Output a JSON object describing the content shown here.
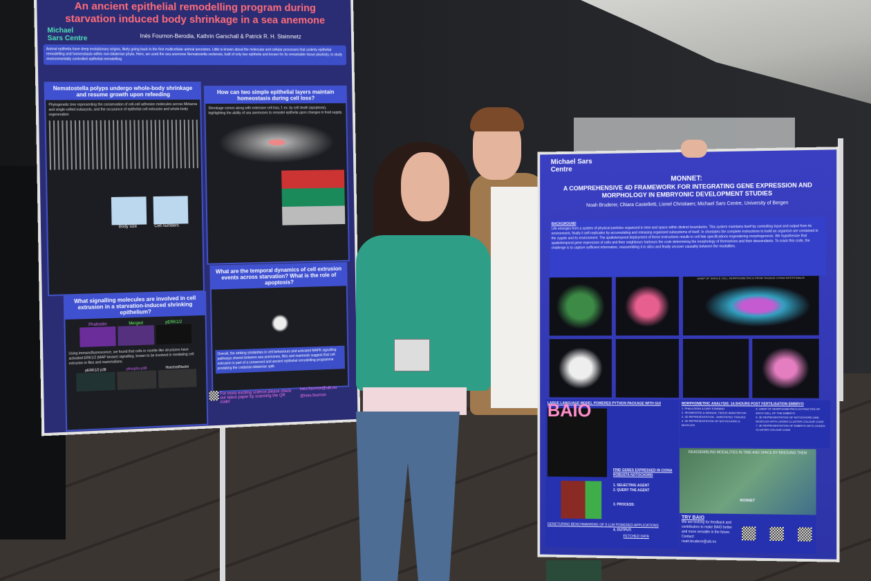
{
  "left_poster": {
    "title": "An ancient epithelial remodelling program during starvation induced body shrinkage in a sea anemone",
    "logo": "Michael Sars Centre",
    "authors": "Inés Fournon-Berodia, Kathrin Garschall & Patrick R. H. Steinmetz",
    "abstract": "Animal epithelia have deep evolutionary origins, likely going back to the first multicellular animal ancestors. Little is known about the molecular and cellular processes that underly epithelial remodelling and homeostasis within non-bilaterian phyla. Here, we used the sea anemone Nematostella vectensis, built of only two epithelia and known for its remarkable tissue plasticity, to study environmentally controlled epithelial remodelling",
    "sections": [
      {
        "heading": "Nematostella polyps undergo whole-body shrinkage and resume growth upon refeeding",
        "text": "Phylogenetic tree representing the conservation of cell-cell adhesion molecules across Metazoa and single-celled eukaryots, and the occurance of epithelial cell extrusion and whole-body regeneration"
      },
      {
        "heading": "How can two simple epithelial layers maintain homeostasis during cell loss?",
        "text": "Shrinkage comes along with extensive cell loss, f. ex. by cell death (apoptosis), highlighting the ability of sea anemones to remodel epithelia upon changes in food supply."
      },
      {
        "heading": "What signalling molecules are involved in cell extrusion in a starvation-induced shrinking epithelium?",
        "text": "Using immunofluorescence, we found that cells in rosette-like structures have activated ERK1/2 (MAP kinase) signalling, known to be involved in mediating cell extrusion in flies and mammalians."
      },
      {
        "heading": "What are the temporal dynamics of cell extrusion events across starvation? What is the role of apoptosis?",
        "text": "Overall, the striking similarities in cell behaviours and activated MAPK signalling pathways shared between sea anemones, flies and mammals suggest that cell extrusion is part of a conserved and ancient epithelial remodelling programme predating the cnidarian-bilaterian split."
      }
    ],
    "labels": [
      "Phalloidin",
      "Merged",
      "pERK1/2",
      "pERK1/2 p38",
      "phospho-p38",
      "Hoechst/Nuclei",
      "Body size",
      "Cell numbers"
    ],
    "footer": "For more exciting science please check our latest paper by scanning the QR code!",
    "contact_email": "ines.fournon@uib.no",
    "contact_x": "@ines.fournon"
  },
  "right_poster": {
    "logo": "Michael Sars Centre",
    "title": "MONNET:",
    "subtitle": "A COMPREHENSIVE 4D FRAMEWORK FOR INTEGRATING GENE EXPRESSION AND MORPHOLOGY IN EMBRYONIC DEVELOPMENT STUDIES",
    "authors": "Noah Bruderer, Chiara Castelletti, Lionel Christiaen; Michael Sars Centre, University of Bergen",
    "background_heading": "BACKGROUND",
    "background": "Life emerges from a system of physical particles organized in time and space within distinct boundaries. This system maintains itself by controlling input and output from its environment, finally it self-replicates by accumulating and releasing organised subsystems of itself. In chordates the complete instructions to build an organism are contained in the zygote and its environment. The spatiotemporal deployment of these instructions results in cell fate specifications engendering morphogenesis. We hypothesise that spatiotemporal gene expression of cells and their neighbours harbours the code determining the morphology of themselves and their descendants. To crack this code, the challenge is to capture sufficient information, reassembling it in silico and finally uncover causality between the modalities.",
    "llm_heading": "LARGE LANGUAGE MODEL POWERED PYTHON PACKAGE WITH GUI",
    "baio": "BAIO",
    "find_genes": "FIND GENES EXPRESSED IN CIONA ROBUSTA NOTOCHORD",
    "steps": [
      "1. SELECTING AGENT",
      "2. QUERY THE AGENT",
      "3. PROCESS:",
      "4. OUTPUT:"
    ],
    "benchmark": "GENETURING BENCHMARKING OF 9 LLM POWERED APPLICATIONS",
    "fetched": "FETCHED DATA",
    "morpho_heading": "MORPHOMETRIC ANALYSIS: 14.5HOURS POST FERTILISATION EMBRYO",
    "morpho_items": [
      "1. PHALLOIDIN & DAPI STAINING",
      "2. SEGMENTED & MANUAL TISSUE ANNOTATION",
      "3. 3D REPRESENTATION - ANNOTATED TISSUES",
      "4. 3D REPRESENTATION OF NOTOCHORD & MUSCLES",
      "5. UMAP OF MORPHOMETRICS EXTRACTED OF EACH CELL OF THE EMBRYO",
      "6. 3D REPRESENTATION OF NOTOCHORD AND MUSCLES WITH LEIDEN CLUSTER COLOUR CODE",
      "7. 3D REPRESENTATION OF EMBRYO WITH LEIDEN CLUSTER COLOUR CODE"
    ],
    "umap_title": "UMAP OF SINGLE CELL MORPHOMETRICS FROM TAILBUD CIONA INTESTINALIS",
    "reassemble": "REASSEMBLING MODALITIES IN TIME AND SPACE BY BRIDGING THEM",
    "monnet": "MONNET",
    "try_heading": "TRY BAIO",
    "try_text": "We are looking for feedback and contributors to make BAIO better and more versatile in the future.",
    "contact": "Contact:",
    "contact_email": "noah.bruderer@uib.no"
  },
  "colors": {
    "left_poster_bg": "#2a2c74",
    "left_title": "#ff6e7a",
    "right_poster_bg": "#3a3fc2",
    "section_header": "#3f51d1"
  }
}
